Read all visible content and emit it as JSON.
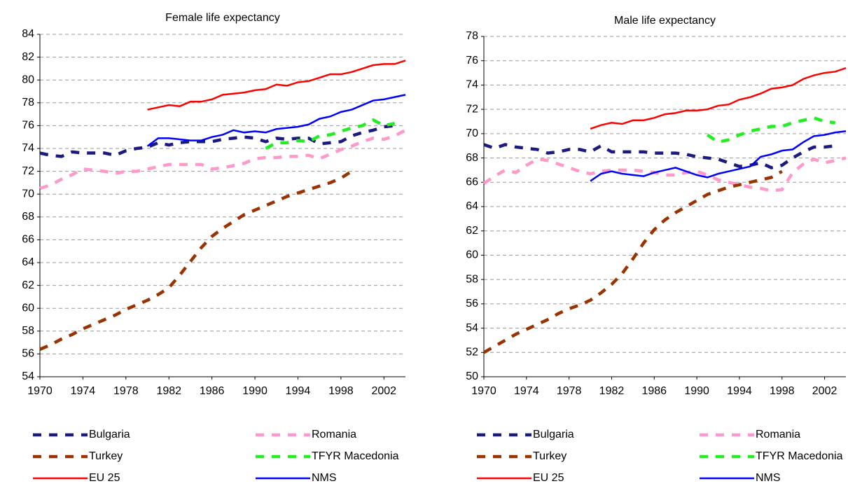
{
  "chart_data": [
    {
      "type": "line",
      "title": "Female life expectancy",
      "x": [
        1970,
        1971,
        1972,
        1973,
        1974,
        1975,
        1976,
        1977,
        1978,
        1979,
        1980,
        1981,
        1982,
        1983,
        1984,
        1985,
        1986,
        1987,
        1988,
        1989,
        1990,
        1991,
        1992,
        1993,
        1994,
        1995,
        1996,
        1997,
        1998,
        1999,
        2000,
        2001,
        2002,
        2003,
        2004
      ],
      "xlim": [
        1970,
        2004
      ],
      "xticks": [
        1970,
        1974,
        1978,
        1982,
        1986,
        1990,
        1994,
        1998,
        2002
      ],
      "ylim": [
        54,
        84
      ],
      "yticks": [
        54,
        56,
        58,
        60,
        62,
        64,
        66,
        68,
        70,
        72,
        74,
        76,
        78,
        80,
        82,
        84
      ],
      "grid": true,
      "series": [
        {
          "name": "Bulgaria",
          "color": "#1a1a80",
          "dashed": true,
          "values": [
            73.6,
            73.4,
            73.3,
            73.7,
            73.6,
            73.6,
            73.6,
            73.4,
            73.8,
            74.0,
            74.1,
            74.5,
            74.3,
            74.5,
            74.6,
            74.6,
            74.6,
            74.8,
            74.9,
            75.0,
            74.9,
            74.6,
            74.9,
            74.8,
            74.9,
            74.9,
            74.4,
            74.5,
            74.6,
            75.1,
            75.4,
            75.6,
            75.9,
            76.0,
            null
          ]
        },
        {
          "name": "Romania",
          "color": "#ff99cc",
          "dashed": true,
          "values": [
            70.5,
            70.8,
            71.3,
            71.7,
            72.2,
            72.1,
            72.0,
            71.8,
            72.0,
            72.0,
            72.2,
            72.4,
            72.6,
            72.6,
            72.6,
            72.6,
            72.2,
            72.3,
            72.5,
            72.7,
            73.1,
            73.2,
            73.2,
            73.3,
            73.3,
            73.4,
            73.1,
            73.5,
            73.9,
            74.2,
            74.6,
            74.9,
            74.8,
            75.1,
            75.6
          ]
        },
        {
          "name": "Turkey",
          "color": "#993300",
          "dashed": true,
          "values": [
            56.4,
            56.8,
            57.3,
            57.7,
            58.2,
            58.6,
            59.0,
            59.4,
            59.9,
            60.3,
            60.7,
            61.2,
            61.8,
            62.9,
            64.1,
            65.3,
            66.3,
            67.0,
            67.6,
            68.2,
            68.6,
            69.0,
            69.4,
            69.8,
            70.1,
            70.4,
            70.7,
            71.0,
            71.4,
            72.0,
            null,
            null,
            null,
            null,
            null
          ]
        },
        {
          "name": "TFYR Macedonia",
          "color": "#22ee22",
          "dashed": true,
          "values": [
            null,
            null,
            null,
            null,
            null,
            null,
            null,
            null,
            null,
            null,
            null,
            null,
            null,
            null,
            null,
            null,
            null,
            null,
            null,
            null,
            null,
            74.0,
            74.5,
            74.5,
            74.7,
            74.6,
            75.1,
            75.2,
            75.5,
            75.8,
            76.0,
            76.5,
            76.0,
            76.2,
            null
          ]
        },
        {
          "name": "EU 25",
          "color": "#ff0000",
          "dashed": false,
          "values": [
            null,
            null,
            null,
            null,
            null,
            null,
            null,
            null,
            null,
            null,
            77.4,
            77.6,
            77.8,
            77.7,
            78.1,
            78.1,
            78.3,
            78.7,
            78.8,
            78.9,
            79.1,
            79.2,
            79.6,
            79.5,
            79.8,
            79.9,
            80.2,
            80.5,
            80.5,
            80.7,
            81.0,
            81.3,
            81.4,
            81.4,
            81.7
          ]
        },
        {
          "name": "NMS",
          "color": "#0000ff",
          "dashed": false,
          "values": [
            null,
            null,
            null,
            null,
            null,
            null,
            null,
            null,
            null,
            null,
            74.2,
            74.9,
            74.9,
            74.8,
            74.7,
            74.7,
            75.0,
            75.2,
            75.6,
            75.4,
            75.5,
            75.4,
            75.7,
            75.8,
            75.9,
            76.1,
            76.6,
            76.8,
            77.2,
            77.4,
            77.8,
            78.2,
            78.3,
            78.5,
            78.7
          ]
        }
      ]
    },
    {
      "type": "line",
      "title": "Male life expectancy",
      "x": [
        1970,
        1971,
        1972,
        1973,
        1974,
        1975,
        1976,
        1977,
        1978,
        1979,
        1980,
        1981,
        1982,
        1983,
        1984,
        1985,
        1986,
        1987,
        1988,
        1989,
        1990,
        1991,
        1992,
        1993,
        1994,
        1995,
        1996,
        1997,
        1998,
        1999,
        2000,
        2001,
        2002,
        2003,
        2004
      ],
      "xlim": [
        1970,
        2004
      ],
      "xticks": [
        1970,
        1974,
        1978,
        1982,
        1986,
        1990,
        1994,
        1998,
        2002
      ],
      "ylim": [
        50,
        78
      ],
      "yticks": [
        50,
        52,
        54,
        56,
        58,
        60,
        62,
        64,
        66,
        68,
        70,
        72,
        74,
        76,
        78
      ],
      "grid": true,
      "series": [
        {
          "name": "Bulgaria",
          "color": "#1a1a80",
          "dashed": true,
          "values": [
            69.1,
            68.8,
            69.1,
            68.9,
            68.8,
            68.7,
            68.4,
            68.5,
            68.7,
            68.7,
            68.5,
            69.0,
            68.5,
            68.5,
            68.5,
            68.5,
            68.4,
            68.4,
            68.4,
            68.3,
            68.1,
            68.0,
            67.9,
            67.6,
            67.3,
            67.4,
            67.6,
            67.2,
            67.4,
            68.0,
            68.5,
            68.9,
            68.9,
            69.0,
            null
          ]
        },
        {
          "name": "Romania",
          "color": "#ff99cc",
          "dashed": true,
          "values": [
            65.9,
            66.5,
            67.0,
            66.8,
            67.4,
            67.9,
            67.8,
            67.5,
            67.2,
            66.9,
            66.7,
            66.9,
            67.0,
            67.0,
            67.0,
            66.9,
            66.8,
            66.6,
            66.6,
            66.8,
            66.9,
            66.6,
            66.2,
            66.0,
            65.8,
            65.6,
            65.5,
            65.3,
            65.4,
            66.8,
            67.5,
            67.9,
            67.6,
            67.8,
            68.0
          ]
        },
        {
          "name": "Turkey",
          "color": "#993300",
          "dashed": true,
          "values": [
            52.0,
            52.5,
            53.0,
            53.5,
            53.9,
            54.3,
            54.7,
            55.2,
            55.6,
            55.9,
            56.3,
            56.9,
            57.6,
            58.5,
            59.7,
            61.0,
            62.1,
            62.9,
            63.5,
            64.0,
            64.5,
            65.0,
            65.3,
            65.6,
            65.8,
            66.0,
            66.2,
            66.4,
            66.9,
            null,
            null,
            null,
            null,
            null,
            null
          ]
        },
        {
          "name": "TFYR Macedonia",
          "color": "#22ee22",
          "dashed": true,
          "values": [
            null,
            null,
            null,
            null,
            null,
            null,
            null,
            null,
            null,
            null,
            null,
            null,
            null,
            null,
            null,
            null,
            null,
            null,
            null,
            null,
            null,
            69.9,
            69.3,
            69.5,
            69.9,
            70.2,
            70.4,
            70.6,
            70.6,
            70.9,
            71.1,
            71.3,
            71.0,
            70.9,
            null
          ]
        },
        {
          "name": "EU 25",
          "color": "#ff0000",
          "dashed": false,
          "values": [
            null,
            null,
            null,
            null,
            null,
            null,
            null,
            null,
            null,
            null,
            70.4,
            70.7,
            70.9,
            70.8,
            71.1,
            71.1,
            71.3,
            71.6,
            71.7,
            71.9,
            71.9,
            72.0,
            72.3,
            72.4,
            72.8,
            73.0,
            73.3,
            73.7,
            73.8,
            74.0,
            74.5,
            74.8,
            75.0,
            75.1,
            75.4
          ]
        },
        {
          "name": "NMS",
          "color": "#0000ff",
          "dashed": false,
          "values": [
            null,
            null,
            null,
            null,
            null,
            null,
            null,
            null,
            null,
            null,
            66.1,
            66.7,
            66.9,
            66.7,
            66.6,
            66.5,
            66.8,
            67.0,
            67.2,
            66.9,
            66.6,
            66.4,
            66.7,
            66.9,
            67.1,
            67.3,
            68.1,
            68.3,
            68.6,
            68.7,
            69.3,
            69.8,
            69.9,
            70.1,
            70.2
          ]
        }
      ]
    }
  ]
}
